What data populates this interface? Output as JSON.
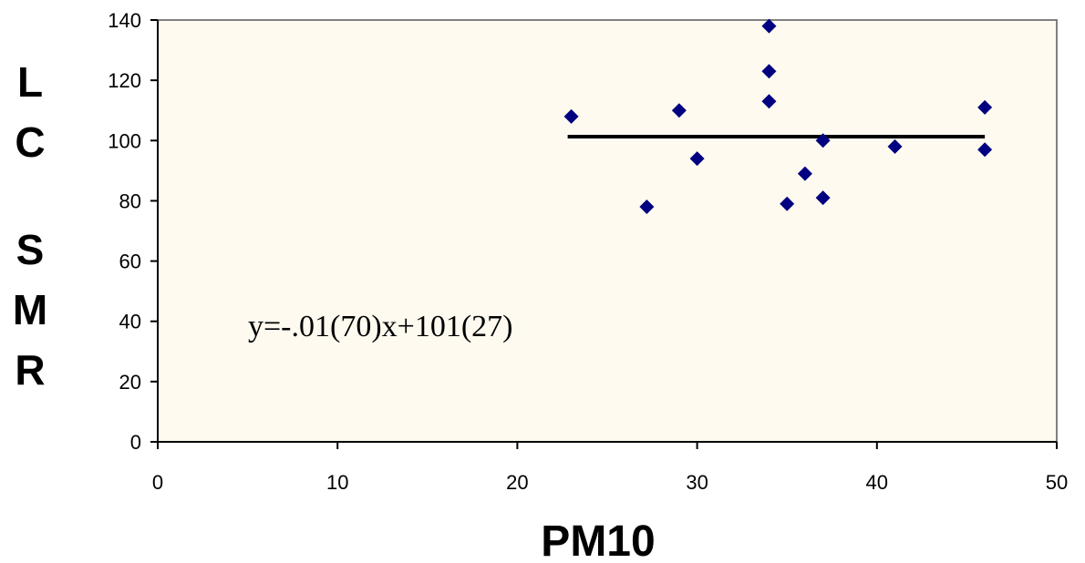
{
  "chart_data": {
    "type": "scatter",
    "xlabel": "PM10",
    "ylabel_letters": [
      "L",
      "C",
      "",
      "S",
      "M",
      "R"
    ],
    "xlim": [
      0,
      50
    ],
    "ylim": [
      0,
      140
    ],
    "xticks": [
      "0",
      "10",
      "20",
      "30",
      "40",
      "50"
    ],
    "yticks": [
      "0",
      "20",
      "40",
      "60",
      "80",
      "100",
      "120",
      "140"
    ],
    "points": [
      {
        "x": 23,
        "y": 108
      },
      {
        "x": 27.2,
        "y": 78
      },
      {
        "x": 29,
        "y": 110
      },
      {
        "x": 30,
        "y": 94
      },
      {
        "x": 34,
        "y": 138
      },
      {
        "x": 34,
        "y": 123
      },
      {
        "x": 34,
        "y": 113
      },
      {
        "x": 35,
        "y": 79
      },
      {
        "x": 36,
        "y": 89
      },
      {
        "x": 37,
        "y": 100
      },
      {
        "x": 37,
        "y": 81
      },
      {
        "x": 41,
        "y": 98
      },
      {
        "x": 46,
        "y": 111
      },
      {
        "x": 46,
        "y": 97
      }
    ],
    "trendline": {
      "x": [
        22.8,
        46
      ],
      "y": [
        101.3,
        101.3
      ]
    },
    "annotation": "y=-.01(70)x+101(27)",
    "colors": {
      "plot_background": "#fefaf0",
      "marker": "#000080",
      "trendline": "#000000",
      "frame": "#808080"
    }
  }
}
